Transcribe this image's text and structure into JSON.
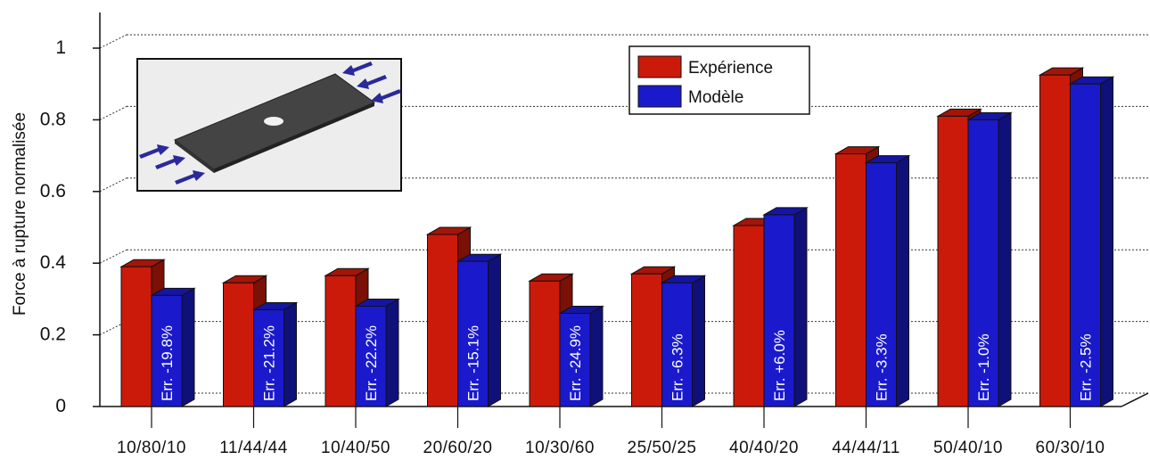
{
  "chart_data": {
    "type": "bar",
    "ylabel": "Force à rupture normalisée",
    "xlabel": "",
    "ylim": [
      0,
      1
    ],
    "yticks": [
      "0",
      "0.2",
      "0.4",
      "0.6",
      "0.8",
      "1"
    ],
    "grid": true,
    "legend_position": "top-right",
    "categories": [
      "10/80/10",
      "11/44/44",
      "10/40/50",
      "20/60/20",
      "10/30/60",
      "25/50/25",
      "40/40/20",
      "44/44/11",
      "50/40/10",
      "60/30/10"
    ],
    "series": [
      {
        "name": "Expérience",
        "color": "#cc1a0a",
        "values": [
          0.39,
          0.345,
          0.365,
          0.48,
          0.35,
          0.37,
          0.505,
          0.705,
          0.81,
          0.925
        ]
      },
      {
        "name": "Modèle",
        "color": "#1a1acc",
        "values": [
          0.31,
          0.27,
          0.28,
          0.405,
          0.26,
          0.345,
          0.535,
          0.68,
          0.8,
          0.9
        ]
      }
    ],
    "annotations": [
      "Err. -19.8%",
      "Err. -21.2%",
      "Err. -22.2%",
      "Err. -15.1%",
      "Err. -24.9%",
      "Err. -6.3%",
      "Err. +6.0%",
      "Err. -3.3%",
      "Err. -1.0%",
      "Err. -2.5%"
    ]
  },
  "inset": {
    "description_icon": "plate-with-hole-compression-icon"
  }
}
